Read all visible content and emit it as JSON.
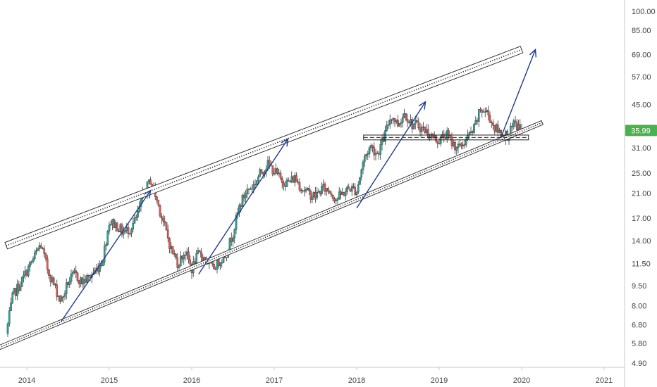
{
  "chart_data": {
    "type": "candlestick",
    "title": "",
    "xlabel": "",
    "ylabel": "",
    "y_scale": "log",
    "ylim": [
      4.6,
      112
    ],
    "xlim": [
      "2013-09",
      "2021-03"
    ],
    "x_ticks": [
      "2014",
      "2015",
      "2016",
      "2017",
      "2018",
      "2019",
      "2020",
      "2021"
    ],
    "y_ticks": [
      "100.00",
      "85.00",
      "69.00",
      "57.00",
      "45.00",
      "31.00",
      "25.00",
      "21.00",
      "17.00",
      "14.00",
      "11.50",
      "9.50",
      "8.00",
      "6.80",
      "5.80",
      "4.90"
    ],
    "last_price": 35.99,
    "last_price_label": "35.99",
    "colors": {
      "up": "#26a69a",
      "down": "#ef5350",
      "arrow": "#1f3a8a",
      "price_tag": "#4caf50",
      "axis": "#c8c8c8",
      "text": "#444444"
    },
    "close_path": [
      [
        "2013-10",
        6.3
      ],
      [
        "2013-11",
        8.8
      ],
      [
        "2013-12",
        9.6
      ],
      [
        "2014-01",
        10.8
      ],
      [
        "2014-02",
        12.0
      ],
      [
        "2014-03",
        13.6
      ],
      [
        "2014-04",
        11.0
      ],
      [
        "2014-05",
        9.5
      ],
      [
        "2014-06",
        8.3
      ],
      [
        "2014-07",
        9.8
      ],
      [
        "2014-08",
        10.5
      ],
      [
        "2014-09",
        9.8
      ],
      [
        "2014-10",
        10.2
      ],
      [
        "2014-11",
        10.8
      ],
      [
        "2014-12",
        11.8
      ],
      [
        "2015-01",
        16.5
      ],
      [
        "2015-02",
        16.0
      ],
      [
        "2015-03",
        15.0
      ],
      [
        "2015-04",
        15.5
      ],
      [
        "2015-05",
        17.0
      ],
      [
        "2015-06",
        21.0
      ],
      [
        "2015-07",
        23.5
      ],
      [
        "2015-08",
        19.5
      ],
      [
        "2015-09",
        16.0
      ],
      [
        "2015-10",
        13.0
      ],
      [
        "2015-11",
        11.5
      ],
      [
        "2015-12",
        12.8
      ],
      [
        "2016-01",
        11.0
      ],
      [
        "2016-02",
        12.5
      ],
      [
        "2016-03",
        12.0
      ],
      [
        "2016-04",
        11.0
      ],
      [
        "2016-05",
        11.8
      ],
      [
        "2016-06",
        12.5
      ],
      [
        "2016-07",
        15.0
      ],
      [
        "2016-08",
        19.0
      ],
      [
        "2016-09",
        21.5
      ],
      [
        "2016-10",
        22.5
      ],
      [
        "2016-11",
        25.0
      ],
      [
        "2016-12",
        27.0
      ],
      [
        "2017-01",
        25.5
      ],
      [
        "2017-02",
        23.5
      ],
      [
        "2017-03",
        23.0
      ],
      [
        "2017-04",
        24.0
      ],
      [
        "2017-05",
        22.0
      ],
      [
        "2017-06",
        21.0
      ],
      [
        "2017-07",
        20.5
      ],
      [
        "2017-08",
        22.0
      ],
      [
        "2017-09",
        21.5
      ],
      [
        "2017-10",
        20.0
      ],
      [
        "2017-11",
        21.0
      ],
      [
        "2017-12",
        22.0
      ],
      [
        "2018-01",
        21.5
      ],
      [
        "2018-02",
        28.0
      ],
      [
        "2018-03",
        31.5
      ],
      [
        "2018-04",
        29.5
      ],
      [
        "2018-05",
        34.0
      ],
      [
        "2018-06",
        41.0
      ],
      [
        "2018-07",
        38.0
      ],
      [
        "2018-08",
        42.0
      ],
      [
        "2018-09",
        38.0
      ],
      [
        "2018-10",
        37.5
      ],
      [
        "2018-11",
        36.0
      ],
      [
        "2018-12",
        34.0
      ],
      [
        "2019-01",
        33.0
      ],
      [
        "2019-02",
        35.0
      ],
      [
        "2019-03",
        32.0
      ],
      [
        "2019-04",
        31.0
      ],
      [
        "2019-05",
        33.5
      ],
      [
        "2019-06",
        36.0
      ],
      [
        "2019-07",
        43.0
      ],
      [
        "2019-08",
        42.0
      ],
      [
        "2019-09",
        37.0
      ],
      [
        "2019-10",
        35.0
      ],
      [
        "2019-11",
        34.5
      ],
      [
        "2019-12",
        38.0
      ],
      [
        "2020-01",
        36.0
      ]
    ],
    "channel_upper_band": [
      [
        "2013-10",
        13.4
      ],
      [
        "2020-01",
        72.0
      ]
    ],
    "channel_lower_band": [
      [
        "2013-09",
        5.6
      ],
      [
        "2020-04",
        38.5
      ]
    ],
    "support_zone": [
      [
        "2018-02",
        "2020-02"
      ],
      [
        33.2,
        34.6
      ]
    ],
    "arrows": [
      [
        [
          "2014-06",
          7.0
        ],
        [
          "2015-07",
          21.5
        ]
      ],
      [
        [
          "2016-02",
          10.5
        ],
        [
          "2017-03",
          33.5
        ]
      ],
      [
        [
          "2018-01",
          18.5
        ],
        [
          "2018-11",
          46.0
        ]
      ],
      [
        [
          "2019-10",
          34.0
        ],
        [
          "2020-03",
          72.0
        ]
      ]
    ]
  }
}
